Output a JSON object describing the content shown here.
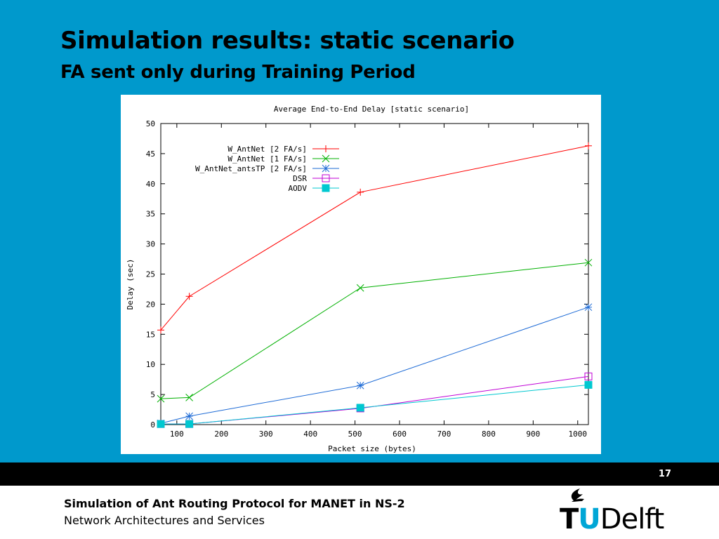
{
  "slide": {
    "title": "Simulation results: static scenario",
    "subtitle": "FA sent only during Training Period",
    "page_number": "17",
    "footer_title": "Simulation of Ant Routing Protocol for MANET in NS-2",
    "footer_subtitle": "Network Architectures and Services",
    "logo": {
      "part_t": "T",
      "part_u": "U",
      "part_rest": "Delft",
      "accent": "#00a6d6"
    },
    "background": "#0099cc"
  },
  "chart_data": {
    "type": "line",
    "title": "Average End-to-End Delay [static scenario]",
    "xlabel": "Packet size (bytes)",
    "ylabel": "Delay (sec)",
    "xlim": [
      64,
      1024
    ],
    "ylim": [
      0,
      50
    ],
    "xticks": [
      100,
      200,
      300,
      400,
      500,
      600,
      700,
      800,
      900,
      1000
    ],
    "yticks": [
      0,
      5,
      10,
      15,
      20,
      25,
      30,
      35,
      40,
      45,
      50
    ],
    "grid": false,
    "legend_position": "top-left",
    "series": [
      {
        "name": "W_AntNet [2 FA/s]",
        "color": "#ff0000",
        "marker": "plus",
        "points": [
          [
            64,
            15.7
          ],
          [
            128,
            21.3
          ],
          [
            512,
            38.6
          ],
          [
            1024,
            46.3
          ]
        ]
      },
      {
        "name": "W_AntNet [1 FA/s]",
        "color": "#00b000",
        "marker": "x",
        "points": [
          [
            64,
            4.3
          ],
          [
            128,
            4.5
          ],
          [
            512,
            22.7
          ],
          [
            1024,
            26.9
          ]
        ]
      },
      {
        "name": "W_AntNet_antsTP [2 FA/s]",
        "color": "#1e6bd6",
        "marker": "star",
        "points": [
          [
            64,
            0.2
          ],
          [
            128,
            1.4
          ],
          [
            512,
            6.5
          ],
          [
            1024,
            19.5
          ]
        ]
      },
      {
        "name": "DSR",
        "color": "#c000d6",
        "marker": "square-open",
        "points": [
          [
            64,
            0.1
          ],
          [
            128,
            0.1
          ],
          [
            512,
            2.7
          ],
          [
            1024,
            8.0
          ]
        ]
      },
      {
        "name": "AODV",
        "color": "#00c8d0",
        "marker": "square-filled",
        "points": [
          [
            64,
            0.1
          ],
          [
            128,
            0.1
          ],
          [
            512,
            2.8
          ],
          [
            1024,
            6.6
          ]
        ]
      }
    ]
  }
}
